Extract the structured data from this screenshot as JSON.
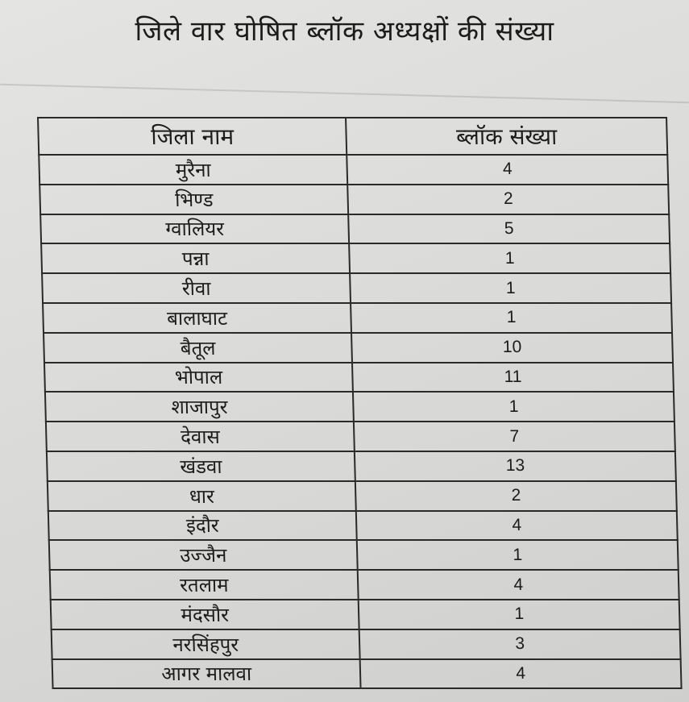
{
  "title": "जिले वार घोषित ब्लॉक अध्यक्षों की संख्या",
  "table": {
    "headers": [
      "जिला नाम",
      "ब्लॉक संख्या"
    ],
    "rows": [
      [
        "मुरैना",
        "4"
      ],
      [
        "भिण्ड",
        "2"
      ],
      [
        "ग्वालियर",
        "5"
      ],
      [
        "पन्ना",
        "1"
      ],
      [
        "रीवा",
        "1"
      ],
      [
        "बालाघाट",
        "1"
      ],
      [
        "बैतूल",
        "10"
      ],
      [
        "भोपाल",
        "11"
      ],
      [
        "शाजापुर",
        "1"
      ],
      [
        "देवास",
        "7"
      ],
      [
        "खंडवा",
        "13"
      ],
      [
        "धार",
        "2"
      ],
      [
        "इंदौर",
        "4"
      ],
      [
        "उज्जैन",
        "1"
      ],
      [
        "रतलाम",
        "4"
      ],
      [
        "मंदसौर",
        "1"
      ],
      [
        "नरसिंहपुर",
        "3"
      ],
      [
        "आगर मालवा",
        "4"
      ]
    ]
  }
}
